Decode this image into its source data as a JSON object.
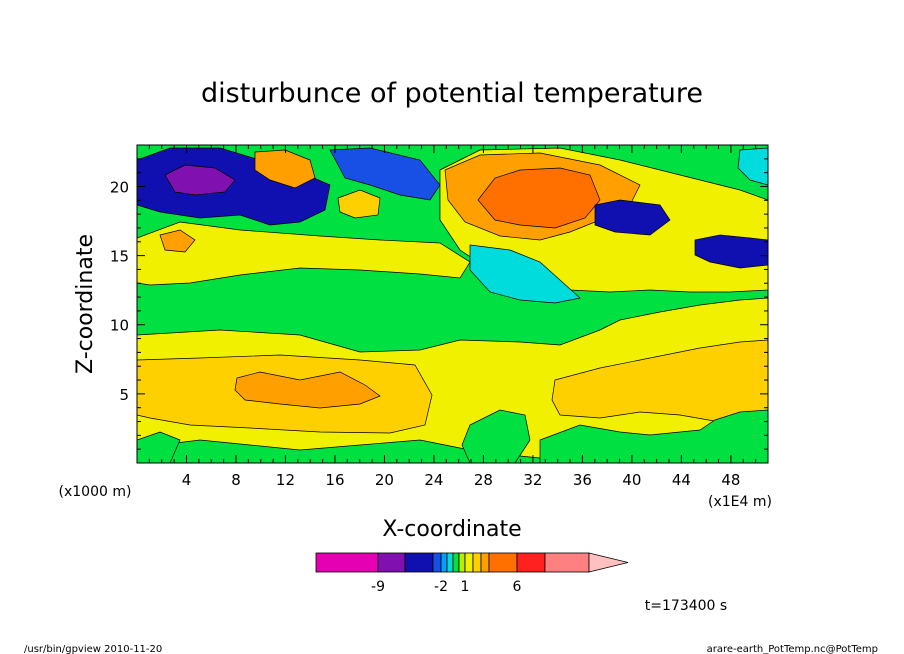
{
  "chart_data": {
    "type": "heatmap",
    "title": "disturbunce of potential temperature",
    "xlabel": "X-coordinate",
    "ylabel": "Z-coordinate",
    "x_unit_left": "(x1000 m)",
    "x_unit_right": "(x1E4 m)",
    "time_label": "t=173400 s",
    "x_ticks": [
      "4",
      "8",
      "12",
      "16",
      "20",
      "24",
      "28",
      "32",
      "36",
      "40",
      "44",
      "48"
    ],
    "y_ticks": [
      "5",
      "10",
      "15",
      "20"
    ],
    "xlim": [
      0,
      51
    ],
    "ylim": [
      0,
      23
    ],
    "colorbar": {
      "tick_labels": [
        "-9",
        "-2",
        "1",
        "6"
      ],
      "colors": [
        "#e600b4",
        "#8010b0",
        "#1010b0",
        "#1850e6",
        "#00a0ff",
        "#00dcdc",
        "#00e040",
        "#b4f000",
        "#f0f000",
        "#ffd000",
        "#ffa000",
        "#ff7000",
        "#ff2020",
        "#ff8080",
        "#ffc0c0"
      ]
    }
  },
  "footer": {
    "left": "/usr/bin/gpview  2010-11-20",
    "right": "arare-earth_PotTemp.nc@PotTemp"
  }
}
